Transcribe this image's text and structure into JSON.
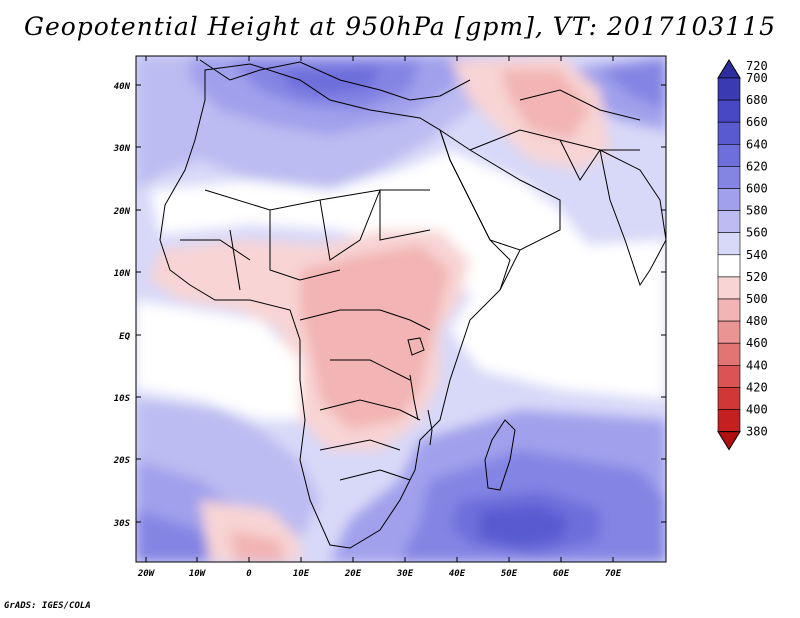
{
  "title": "Geopotential Height at 950hPa [gpm], VT: 2017103115",
  "footer": "GrADS: IGES/COLA",
  "lat_labels": [
    "40N",
    "30N",
    "20N",
    "10N",
    "EQ",
    "10S",
    "20S",
    "30S"
  ],
  "lon_labels": [
    "20W",
    "10W",
    "0",
    "10E",
    "20E",
    "30E",
    "40E",
    "50E",
    "60E",
    "70E"
  ],
  "colorbar": {
    "levels": [
      "720",
      "700",
      "680",
      "660",
      "640",
      "620",
      "600",
      "580",
      "560",
      "540",
      "520",
      "500",
      "480",
      "460",
      "440",
      "420",
      "400",
      "380"
    ],
    "colors": [
      "#2e2e9e",
      "#3a3ab2",
      "#4848c4",
      "#5a5ad0",
      "#6e6edc",
      "#8484e4",
      "#a0a0ec",
      "#bcbcf2",
      "#d8d8f8",
      "#ffffff",
      "#f8d4d4",
      "#f2b4b4",
      "#ea9494",
      "#e27474",
      "#da5454",
      "#d03838",
      "#c42020",
      "#b01010"
    ]
  },
  "map": {
    "lon_range": [
      -22,
      80
    ],
    "lat_range": [
      -37,
      46
    ],
    "features": [
      "Africa coastline",
      "Madagascar",
      "Arabian Peninsula",
      "India",
      "Mediterranean Sea",
      "Red Sea",
      "Lake Victoria",
      "Lake Tanganyika",
      "Lake Malawi"
    ]
  }
}
